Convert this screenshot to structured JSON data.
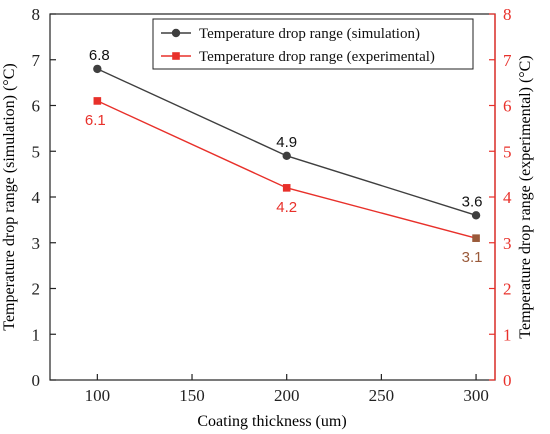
{
  "chart_data": {
    "type": "line",
    "x": [
      100,
      200,
      300
    ],
    "series": [
      {
        "name": "Temperature drop range (simulation)",
        "values": [
          6.8,
          4.9,
          3.6
        ],
        "labels": [
          "6.8",
          "4.9",
          "3.6"
        ],
        "color": "#3f3f3f",
        "marker": "circle",
        "axis": "left"
      },
      {
        "name": "Temperature drop range (experimental)",
        "values": [
          6.1,
          4.2,
          3.1
        ],
        "labels": [
          "6.1",
          "4.2",
          "3.1"
        ],
        "color": "#e8302a",
        "marker": "square",
        "axis": "right"
      }
    ],
    "xlabel": "Coating thickness (um)",
    "ylabel_left": "Temperature drop range (simulation) (°C)",
    "ylabel_right": "Temperature drop range (experimental) (°C)",
    "xlim": [
      75,
      310
    ],
    "ylim": [
      0,
      8
    ],
    "xticks": [
      100,
      150,
      200,
      250,
      300
    ],
    "xtick_labels": [
      "100",
      "150",
      "200",
      "250",
      "300"
    ],
    "yticks": [
      0,
      1,
      2,
      3,
      4,
      5,
      6,
      7,
      8
    ],
    "ytick_labels": [
      "0",
      "1",
      "2",
      "3",
      "4",
      "5",
      "6",
      "7",
      "8"
    ],
    "grid": false,
    "legend_position": "top-right",
    "left_axis_color": "#222222",
    "right_axis_color": "#e8302a",
    "label_overlap_color": "#9a5a3a"
  }
}
